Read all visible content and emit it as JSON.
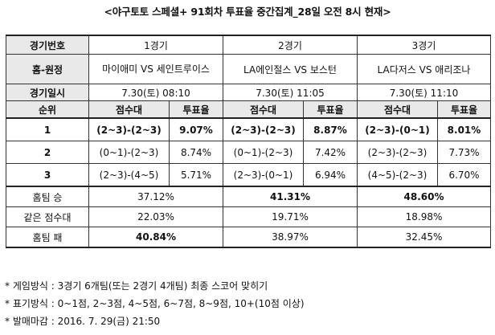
{
  "title": "<야구토토 스페셜+ 91회차 투표율 중간집계_28일 오전 8시 현재>",
  "headers": {
    "game_no": "경기번호",
    "home_away": "홈-원정",
    "game_date": "경기일시",
    "rank": "순위",
    "score_range": "점수대",
    "vote_rate": "투표율"
  },
  "games": [
    {
      "no": "1경기",
      "match": "마이애미 VS 세인트루이스",
      "date": "7.30(토) 08:10"
    },
    {
      "no": "2경기",
      "match": "LA에인절스 VS 보스턴",
      "date": "7.30(토) 11:05"
    },
    {
      "no": "3경기",
      "match": "LA다저스 VS 애리조나",
      "date": "7.30(토) 11:10"
    }
  ],
  "ranks": [
    {
      "rank": "1",
      "cells": [
        [
          "(2~3)-(2~3)",
          "9.07%"
        ],
        [
          "(2~3)-(2~3)",
          "8.87%"
        ],
        [
          "(2~3)-(0~1)",
          "8.01%"
        ]
      ]
    },
    {
      "rank": "2",
      "cells": [
        [
          "(0~1)-(2~3)",
          "8.74%"
        ],
        [
          "(0~1)-(2~3)",
          "7.42%"
        ],
        [
          "(2~3)-(2~3)",
          "7.73%"
        ]
      ]
    },
    {
      "rank": "3",
      "cells": [
        [
          "(2~3)-(4~5)",
          "5.71%"
        ],
        [
          "(2~3)-(0~1)",
          "6.94%"
        ],
        [
          "(4~5)-(2~3)",
          "6.70%"
        ]
      ]
    }
  ],
  "summary": [
    {
      "label": "홈팀 승",
      "values": [
        "37.12%",
        "41.31%",
        "48.60%"
      ]
    },
    {
      "label": "같은 점수대",
      "values": [
        "22.03%",
        "19.71%",
        "18.98%"
      ]
    },
    {
      "label": "홈팀 패",
      "values": [
        "40.84%",
        "38.97%",
        "32.45%"
      ]
    }
  ],
  "notes": [
    "* 게임방식 : 3경기 6개팀(또는 2경기 4개팀) 최종 스코어 맞히기",
    "* 표기방식 : 0~1점, 2~3점, 4~5점, 6~7점, 8~9점, 10+(10점 이상)",
    "* 발매마감 : 2016. 7. 29(금) 21:50"
  ]
}
